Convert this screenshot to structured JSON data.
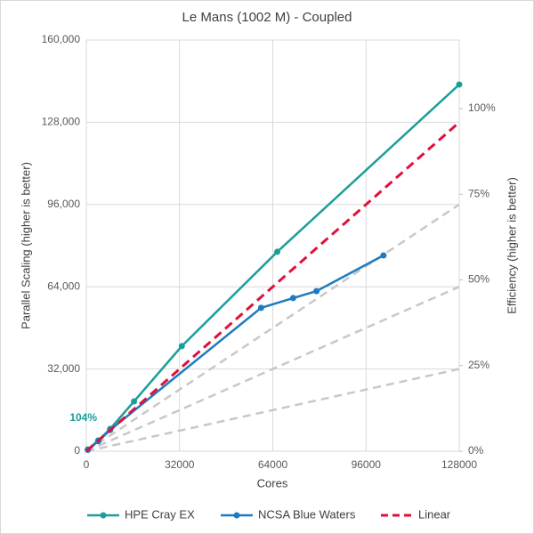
{
  "chart_data": {
    "type": "line",
    "title": "Le Mans (1002 M) - Coupled",
    "x_label": "Cores",
    "y_label": "Parallel Scaling (higher is better)",
    "y2_label": "Efficiency (higher is better)",
    "xlim": [
      0,
      128000
    ],
    "xticks": [
      0,
      32000,
      64000,
      96000,
      128000
    ],
    "ylim": [
      0,
      160000
    ],
    "yticks": [
      0,
      {
        "value": 32000,
        "label": "32,000"
      },
      {
        "value": 64000,
        "label": "64,000"
      },
      {
        "value": 96000,
        "label": "96,000"
      },
      {
        "value": 128000,
        "label": "128,000"
      },
      {
        "value": 160000,
        "label": "160,000"
      }
    ],
    "y2lim": [
      0,
      120
    ],
    "y2ticks": [
      {
        "value": 0,
        "label": "0%"
      },
      {
        "value": 25,
        "label": "25%"
      },
      {
        "value": 50,
        "label": "50%"
      },
      {
        "value": 75,
        "label": "75%"
      },
      {
        "value": 100,
        "label": "100%"
      }
    ],
    "grid": true,
    "legend": "bottom",
    "series": [
      {
        "name": "HPE Cray EX",
        "color": "#1a9e9a",
        "markers": true,
        "dashed": false,
        "x": [
          512,
          4096,
          8192,
          16384,
          32768,
          65536,
          128000
        ],
        "values": [
          700,
          4200,
          8700,
          19400,
          40900,
          77600,
          142700
        ]
      },
      {
        "name": "NCSA Blue Waters",
        "color": "#1f7bbf",
        "markers": true,
        "dashed": false,
        "x": [
          512,
          4096,
          8192,
          60000,
          71000,
          79000,
          102000
        ],
        "values": [
          500,
          3900,
          8300,
          55800,
          59600,
          62300,
          76200
        ]
      },
      {
        "name": "Linear",
        "color": "#e0103a",
        "markers": false,
        "dashed": true,
        "x": [
          0,
          128000
        ],
        "values": [
          0,
          128000
        ]
      }
    ],
    "reference_lines": {
      "color": "#c8c8c8",
      "lines": [
        {
          "x": [
            0,
            128000
          ],
          "values": [
            0,
            96000
          ]
        },
        {
          "x": [
            0,
            128000
          ],
          "values": [
            0,
            64000
          ]
        },
        {
          "x": [
            0,
            128000
          ],
          "values": [
            0,
            32000
          ]
        }
      ]
    },
    "annotation": {
      "text": "104%",
      "color": "#1a9e9a"
    }
  }
}
